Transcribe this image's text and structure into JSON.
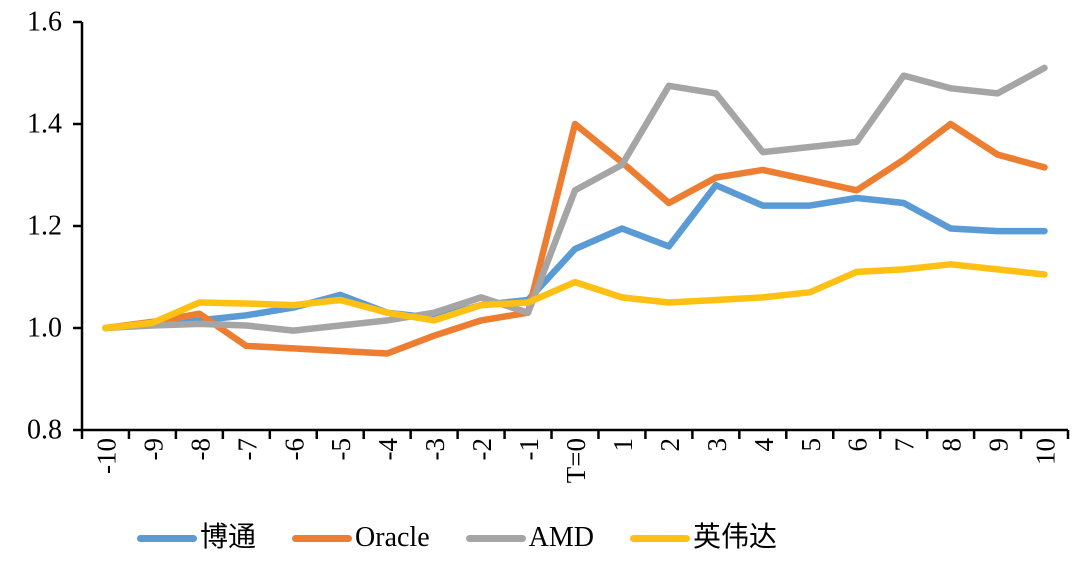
{
  "chart_data": {
    "type": "line",
    "title": "",
    "xlabel": "",
    "ylabel": "",
    "x_categories": [
      "-10",
      "-9",
      "-8",
      "-7",
      "-6",
      "-5",
      "-4",
      "-3",
      "-2",
      "-1",
      "T=0",
      "1",
      "2",
      "3",
      "4",
      "5",
      "6",
      "7",
      "8",
      "9",
      "10"
    ],
    "ylim": [
      0.8,
      1.6
    ],
    "y_ticks": [
      0.8,
      1.0,
      1.2,
      1.4,
      1.6
    ],
    "y_tick_labels": [
      "0.8",
      "1.0",
      "1.2",
      "1.4",
      "1.6"
    ],
    "grid": false,
    "legend_position": "bottom",
    "axis_color": "#000000",
    "series": [
      {
        "name": "博通",
        "key": "broadcom",
        "color": "#5B9BD5",
        "values": [
          1.0,
          1.008,
          1.015,
          1.025,
          1.04,
          1.065,
          1.03,
          1.02,
          1.045,
          1.055,
          1.155,
          1.195,
          1.16,
          1.28,
          1.24,
          1.24,
          1.255,
          1.245,
          1.195,
          1.19,
          1.19
        ]
      },
      {
        "name": "Oracle",
        "key": "oracle",
        "color": "#ED7D31",
        "values": [
          1.0,
          1.012,
          1.028,
          0.965,
          0.96,
          0.955,
          0.95,
          0.985,
          1.015,
          1.03,
          1.4,
          1.325,
          1.245,
          1.295,
          1.31,
          1.29,
          1.27,
          1.33,
          1.4,
          1.34,
          1.315
        ]
      },
      {
        "name": "AMD",
        "key": "amd",
        "color": "#A5A5A5",
        "values": [
          1.0,
          1.005,
          1.008,
          1.005,
          0.995,
          1.005,
          1.015,
          1.03,
          1.06,
          1.03,
          1.27,
          1.32,
          1.475,
          1.46,
          1.345,
          1.355,
          1.365,
          1.495,
          1.47,
          1.46,
          1.51
        ]
      },
      {
        "name": "英伟达",
        "key": "nvidia",
        "color": "#FFC014",
        "values": [
          1.0,
          1.01,
          1.05,
          1.048,
          1.045,
          1.055,
          1.03,
          1.015,
          1.045,
          1.05,
          1.09,
          1.06,
          1.05,
          1.055,
          1.06,
          1.07,
          1.11,
          1.115,
          1.125,
          1.115,
          1.105
        ]
      }
    ]
  }
}
